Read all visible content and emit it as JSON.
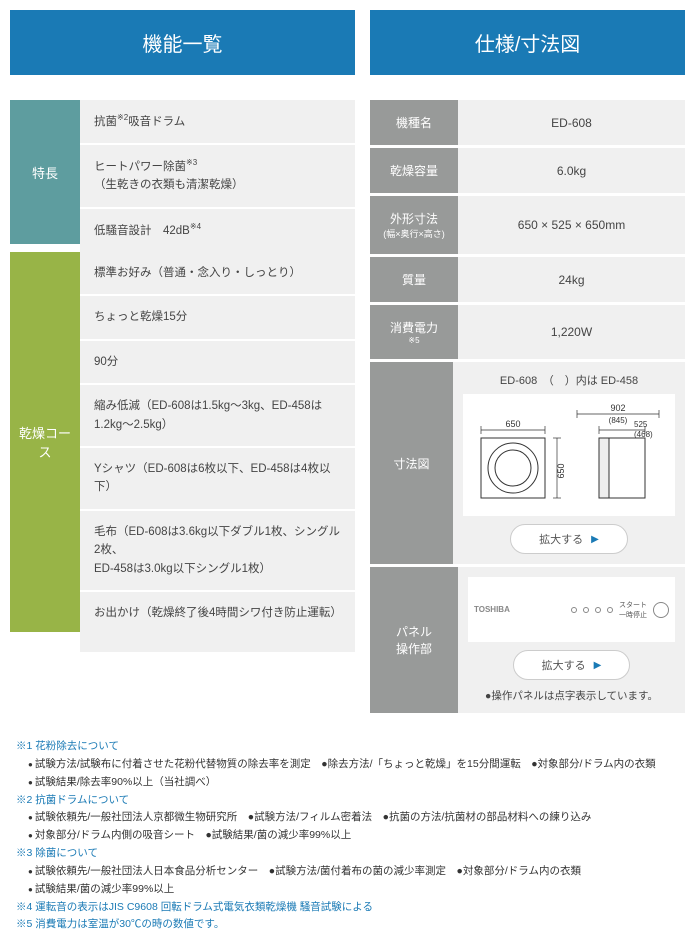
{
  "colors": {
    "header_bg": "#1a7ab5",
    "teal": "#5e9d9f",
    "olive": "#98b447",
    "gray": "#989a99",
    "cell_bg": "#f0f0f0",
    "link_blue": "#1a7ab5"
  },
  "left": {
    "title": "機能一覧",
    "groups": [
      {
        "label": "特長",
        "color": "teal",
        "rows": [
          "抗菌※2吸音ドラム",
          "ヒートパワー除菌※3（生乾きの衣類も清潔乾燥）",
          "低騒音設計　42dB※4"
        ],
        "heights": [
          42,
          60,
          42
        ]
      },
      {
        "label": "乾燥コース",
        "color": "olive",
        "rows": [
          "標準お好み（普通・念入り・しっとり）",
          "ちょっと乾燥15分",
          "90分",
          "縮み低減（ED-608は1.5kg～3kg、ED-458は1.2kg～2.5kg）",
          "Yシャツ（ED-608は6枚以下、ED-458は4枚以下）",
          "毛布（ED-608は3.6kg以下ダブル1枚、シングル2枚、\nED-458は3.0kg以下シングル1枚）",
          "お出かけ（乾燥終了後4時間シワ付き防止運転）"
        ],
        "heights": [
          42,
          42,
          42,
          60,
          60,
          74,
          60
        ]
      }
    ]
  },
  "right": {
    "title": "仕様/寸法図",
    "specs": [
      {
        "label": "機種名",
        "value": "ED-608"
      },
      {
        "label": "乾燥容量",
        "value": "6.0kg"
      },
      {
        "label": "外形寸法",
        "sub": "(幅×奥行×高さ)",
        "value": "650 × 525 × 650mm"
      },
      {
        "label": "質量",
        "value": "24kg"
      },
      {
        "label": "消費電力※5",
        "value": "1,220W"
      }
    ],
    "diagram": {
      "label": "寸法図",
      "caption": "ED-608　（　）内は ED-458",
      "button": "拡大する",
      "dims": {
        "w": "650",
        "h": "650",
        "w2_top": "902",
        "w2_mid": "(845)",
        "d_top": "525",
        "d_mid": "(468)"
      }
    },
    "panel": {
      "label": "パネル\n操作部",
      "button": "拡大する",
      "note": "●操作パネルは点字表示しています。",
      "brand": "TOSHIBA",
      "start_label": "スタート\n一時停止"
    }
  },
  "footnotes": [
    {
      "head": "※1 花粉除去について",
      "items": [
        "試験方法/試験布に付着させた花粉代替物質の除去率を測定　●除去方法/「ちょっと乾燥」を15分間運転　●対象部分/ドラム内の衣類",
        "試験結果/除去率90%以上（当社調べ）"
      ]
    },
    {
      "head": "※2 抗菌ドラムについて",
      "items": [
        "試験依頼先/一般社団法人京都微生物研究所　●試験方法/フィルム密着法　●抗菌の方法/抗菌材の部品材料への練り込み",
        "対象部分/ドラム内側の吸音シート　●試験結果/菌の減少率99%以上"
      ]
    },
    {
      "head": "※3 除菌について",
      "items": [
        "試験依頼先/一般社団法人日本食品分析センター　●試験方法/菌付着布の菌の減少率測定　●対象部分/ドラム内の衣類",
        "試験結果/菌の減少率99%以上"
      ]
    },
    {
      "head": "※4 運転音の表示はJIS C9608 回転ドラム式電気衣類乾燥機 騒音試験による",
      "items": []
    },
    {
      "head": "※5 消費電力は室温が30℃の時の数値です。",
      "items": []
    }
  ]
}
